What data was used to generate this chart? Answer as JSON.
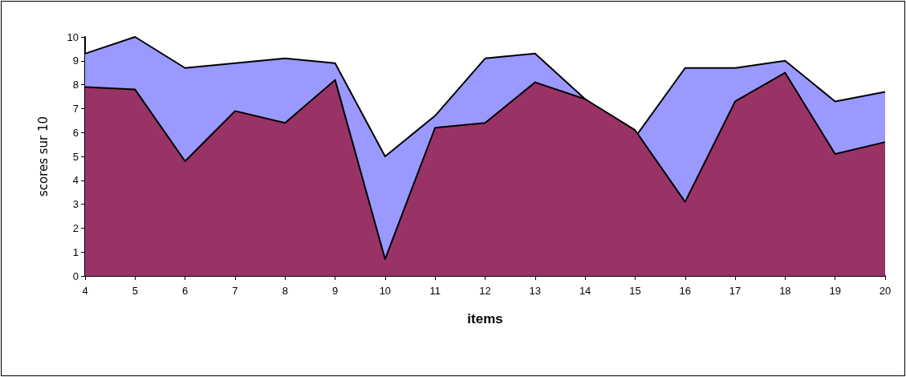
{
  "chart_data": {
    "type": "area",
    "xlabel": "items",
    "ylabel": "scores sur 10",
    "categories": [
      "4",
      "5",
      "6",
      "7",
      "8",
      "9",
      "10",
      "11",
      "12",
      "13",
      "14",
      "15",
      "16",
      "17",
      "18",
      "19",
      "20"
    ],
    "series": [
      {
        "color": "#9999ff",
        "values": [
          9.3,
          10.0,
          8.7,
          8.9,
          9.1,
          8.9,
          5.0,
          6.7,
          9.1,
          9.3,
          7.4,
          5.8,
          8.7,
          8.7,
          9.0,
          7.3,
          7.7
        ]
      },
      {
        "color": "#993366",
        "values": [
          7.9,
          7.8,
          4.8,
          6.9,
          6.4,
          8.2,
          0.7,
          6.2,
          6.4,
          8.1,
          7.4,
          6.1,
          3.1,
          7.3,
          8.5,
          5.1,
          5.6
        ]
      }
    ],
    "ylim": [
      0,
      10
    ],
    "yticks": [
      0,
      1,
      2,
      3,
      4,
      5,
      6,
      7,
      8,
      9,
      10
    ],
    "marker": "none",
    "line_style": "solid"
  }
}
